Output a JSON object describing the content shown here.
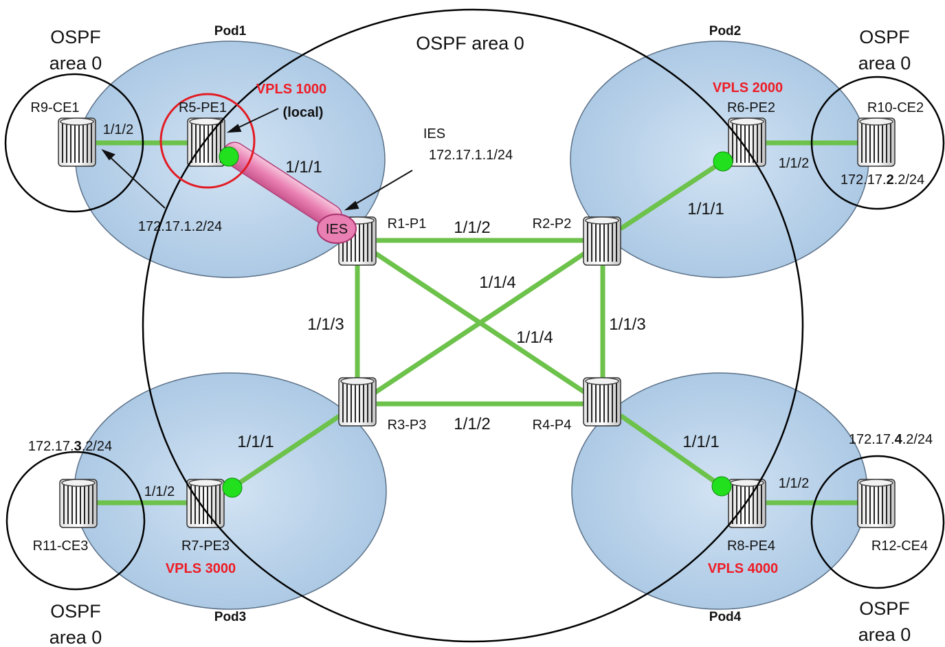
{
  "pods": {
    "pod1": "Pod1",
    "pod2": "Pod2",
    "pod3": "Pod3",
    "pod4": "Pod4"
  },
  "ospf": {
    "main": "OSPF area 0",
    "tl_1": "OSPF",
    "tl_2": "area 0",
    "tr_1": "OSPF",
    "tr_2": "area 0",
    "bl_1": "OSPF",
    "bl_2": "area 0",
    "br_1": "OSPF",
    "br_2": "area 0"
  },
  "routers": {
    "r1": "R1-P1",
    "r2": "R2-P2",
    "r3": "R3-P3",
    "r4": "R4-P4",
    "r5": "R5-PE1",
    "r6": "R6-PE2",
    "r7": "R7-PE3",
    "r8": "R8-PE4",
    "r9": "R9-CE1",
    "r10": "R10-CE2",
    "r11": "R11-CE3",
    "r12": "R12-CE4"
  },
  "vpls": {
    "v1000": "VPLS 1000",
    "local": "(local)",
    "v2000": "VPLS 2000",
    "v3000": "VPLS 3000",
    "v4000": "VPLS 4000"
  },
  "ies": {
    "badge": "IES",
    "label": "IES",
    "addr": "172.17.1.1/24"
  },
  "addresses": {
    "ce1": "172.17.1.2/24",
    "ce2_a": "172.17.",
    "ce2_b": "2",
    "ce2_c": ".2/24",
    "ce3_a": "172.17.",
    "ce3_b": "3",
    "ce3_c": ".2/24",
    "ce4_a": "172.17.",
    "ce4_b": "4",
    "ce4_c": ".2/24"
  },
  "ports": {
    "ce1_pe1": "1/1/2",
    "pe1_p1": "1/1/1",
    "p1_p2": "1/1/2",
    "p2_pe2": "1/1/1",
    "pe2_ce2": "1/1/2",
    "p1_p3": "1/1/3",
    "cross_a": "1/1/4",
    "cross_b": "1/1/4",
    "p2_p4": "1/1/3",
    "p3_p4": "1/1/2",
    "p3_pe3": "1/1/1",
    "pe3_ce3": "1/1/2",
    "p4_pe4": "1/1/1",
    "pe4_ce4": "1/1/2"
  },
  "colors": {
    "link": "#6cc24a",
    "pod_fill": "#bcd6ee",
    "vpls": "#ee1c25",
    "pe_dot": "#22e01e",
    "ies_pipe": "#e97fb2"
  }
}
